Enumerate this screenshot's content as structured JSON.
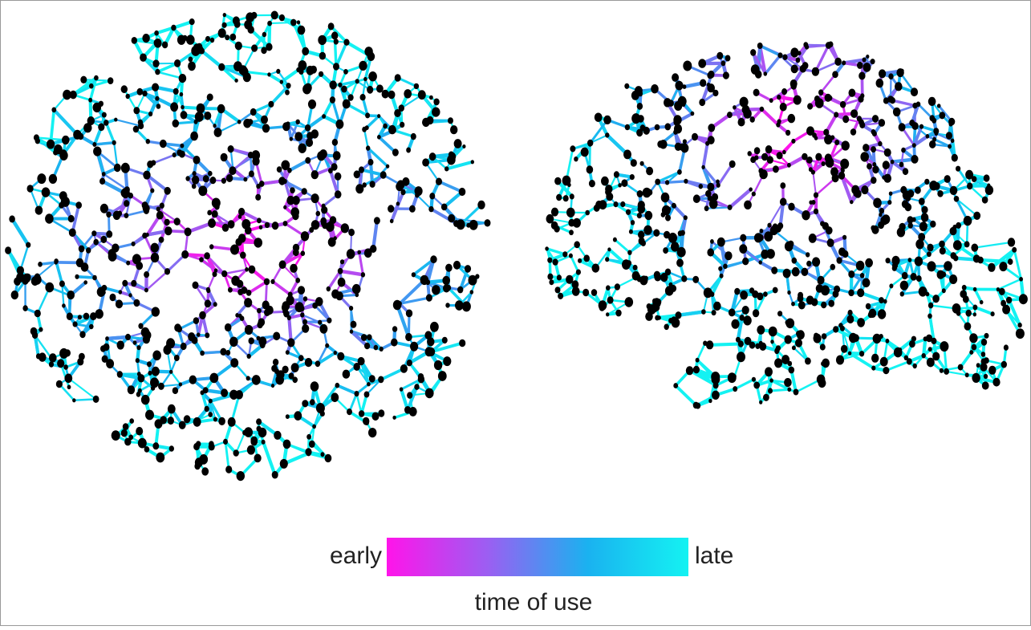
{
  "colorbar": {
    "low_label": "early",
    "high_label": "late",
    "title": "time of use",
    "colors": [
      "#ff14ea",
      "#9c5ef2",
      "#1ab2f0",
      "#14f2f2"
    ]
  }
}
